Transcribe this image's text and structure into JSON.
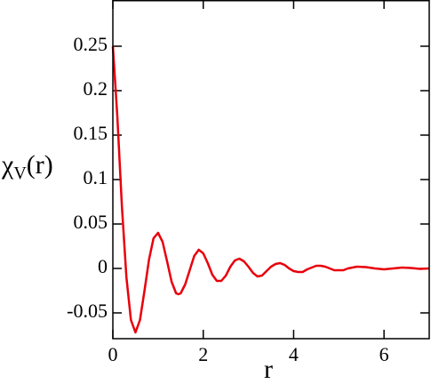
{
  "chart_data": {
    "type": "line",
    "x_label": "r",
    "y_label": {
      "symbol": "χ",
      "subscript": "V",
      "argument": "(r)"
    },
    "x": [
      0,
      0.1,
      0.2,
      0.3,
      0.4,
      0.5,
      0.6,
      0.7,
      0.8,
      0.9,
      1.0,
      1.1,
      1.2,
      1.3,
      1.4,
      1.45,
      1.5,
      1.6,
      1.7,
      1.8,
      1.9,
      2.0,
      2.1,
      2.2,
      2.3,
      2.4,
      2.5,
      2.6,
      2.7,
      2.8,
      2.9,
      3.0,
      3.1,
      3.2,
      3.3,
      3.4,
      3.5,
      3.6,
      3.7,
      3.8,
      3.9,
      4.0,
      4.1,
      4.2,
      4.3,
      4.4,
      4.5,
      4.6,
      4.7,
      4.8,
      4.9,
      5.0,
      5.1,
      5.2,
      5.4,
      5.6,
      5.8,
      6.0,
      6.2,
      6.4,
      6.6,
      6.8,
      7.0
    ],
    "series": [
      {
        "color": "#e8000b",
        "values": [
          0.25,
          0.17,
          0.07,
          -0.01,
          -0.058,
          -0.072,
          -0.058,
          -0.025,
          0.01,
          0.034,
          0.04,
          0.03,
          0.008,
          -0.015,
          -0.028,
          -0.029,
          -0.028,
          -0.018,
          -0.002,
          0.014,
          0.021,
          0.017,
          0.006,
          -0.007,
          -0.014,
          -0.014,
          -0.008,
          0.002,
          0.009,
          0.011,
          0.008,
          0.002,
          -0.005,
          -0.009,
          -0.008,
          -0.003,
          0.002,
          0.005,
          0.006,
          0.004,
          0.0,
          -0.003,
          -0.004,
          -0.004,
          -0.001,
          0.001,
          0.003,
          0.003,
          0.002,
          0.0,
          -0.002,
          -0.002,
          -0.002,
          0.0,
          0.002,
          0.0015,
          0.0,
          -0.001,
          0.0,
          0.001,
          0.0005,
          -0.0005,
          0.0
        ]
      }
    ],
    "xlim": [
      0,
      7
    ],
    "ylim": [
      -0.079,
      0.302
    ],
    "xticks": [
      0,
      2,
      4,
      6
    ],
    "yticks": [
      -0.05,
      0,
      0.05,
      0.1,
      0.15,
      0.2,
      0.25
    ]
  }
}
